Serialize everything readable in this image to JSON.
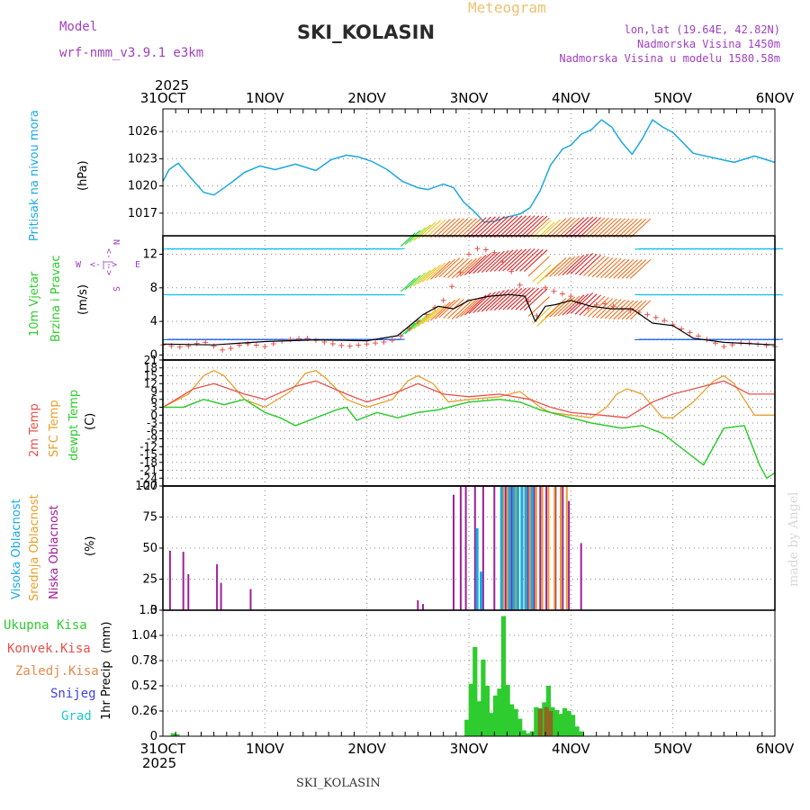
{
  "header": {
    "model_label": "Model",
    "model_name": "wrf-nmm_v3.9.1 e3km",
    "meteogram_label": "Meteogram",
    "station": "SKI_KOLASIN",
    "coords": "lon,lat (19.64E, 42.82N)",
    "elevation": "Nadmorska Visina 1450m",
    "model_elevation": "Nadmorska Visina u modelu 1580.58m",
    "year": "2025",
    "footer_station": "SKI_KOLASIN",
    "credit": "made by Angel"
  },
  "colors": {
    "pressure": "#1ca9e0",
    "temp2m": "#e8504a",
    "sfc": "#e8a02c",
    "dew": "#2ecc2e",
    "purple": "#a040c0",
    "cyan": "#1ca9e0",
    "cloud_low": "#a0209a",
    "cloud_mid": "#e8a02c",
    "cloud_high": "#1ca9e0"
  },
  "time_axis": {
    "labels": [
      "31OCT",
      "1NOV",
      "2NOV",
      "3NOV",
      "4NOV",
      "5NOV",
      "6NOV"
    ],
    "days": [
      0,
      1,
      2,
      3,
      4,
      5,
      6
    ]
  },
  "compass": {
    "n": "N",
    "s": "S",
    "w": "W",
    "e": "E",
    "arrows": "<-|->"
  },
  "chart_data": [
    {
      "type": "line",
      "name": "pressure",
      "ylabel_main": "Pritisak na nivou mora",
      "ylabel_unit": "(hPa)",
      "yticks": [
        1017,
        1020,
        1023,
        1026
      ],
      "ylim": [
        1014.5,
        1028.5
      ],
      "x": [
        0,
        0.06,
        0.15,
        0.25,
        0.4,
        0.5,
        0.65,
        0.8,
        0.95,
        1.1,
        1.3,
        1.5,
        1.65,
        1.8,
        1.92,
        2.05,
        2.2,
        2.35,
        2.5,
        2.6,
        2.75,
        2.85,
        2.95,
        3.05,
        3.15,
        3.25,
        3.35,
        3.5,
        3.6,
        3.7,
        3.8,
        3.92,
        4.0,
        4.1,
        4.2,
        4.3,
        4.4,
        4.5,
        4.6,
        4.7,
        4.8,
        4.9,
        5.0,
        5.2,
        5.4,
        5.6,
        5.8,
        6.0
      ],
      "y": [
        1020.5,
        1021.8,
        1022.5,
        1021.2,
        1019.3,
        1019.0,
        1020.2,
        1021.5,
        1022.2,
        1021.8,
        1022.4,
        1021.7,
        1022.9,
        1023.4,
        1023.2,
        1022.7,
        1021.8,
        1020.5,
        1019.8,
        1019.6,
        1020.2,
        1019.8,
        1018.2,
        1017.2,
        1016.0,
        1016.1,
        1016.5,
        1016.9,
        1017.6,
        1019.5,
        1022.3,
        1024.1,
        1024.5,
        1025.7,
        1026.2,
        1027.3,
        1026.5,
        1024.8,
        1023.5,
        1025.2,
        1027.3,
        1026.5,
        1025.9,
        1023.6,
        1023.1,
        1022.6,
        1023.3,
        1022.6
      ]
    },
    {
      "type": "line",
      "name": "wind",
      "ylabel_main": "10m Vjetar",
      "ylabel_sub": "Brzina i Pravac",
      "ylabel_unit": "(m/s)",
      "yticks": [
        0,
        4,
        8,
        12
      ],
      "ylim": [
        -0.6,
        14.2
      ],
      "series": [
        {
          "name": "speed_plus",
          "x": [
            0,
            0.2,
            0.4,
            0.6,
            0.8,
            1.0,
            1.2,
            1.4,
            1.6,
            1.8,
            2.0,
            2.2,
            2.3,
            2.45,
            2.55,
            2.65,
            2.75,
            2.85,
            2.95,
            3.0,
            3.1,
            3.25,
            3.45,
            3.6,
            3.7,
            3.75,
            3.85,
            4.0,
            4.15,
            4.3,
            4.5,
            4.7,
            4.9,
            5.1,
            5.3,
            5.5,
            5.7,
            6.0
          ],
          "y": [
            1.2,
            0.9,
            1.6,
            0.5,
            1.4,
            1.0,
            1.8,
            2.0,
            1.5,
            1.0,
            1.3,
            1.6,
            1.9,
            3.5,
            4.5,
            5.5,
            6.5,
            8.5,
            10.5,
            12.0,
            12.8,
            12.2,
            9.5,
            6.0,
            4.0,
            8.0,
            7.5,
            7.0,
            5.5,
            6.2,
            5.5,
            5.0,
            4.2,
            3.0,
            2.0,
            1.0,
            1.5,
            1.0
          ]
        },
        {
          "name": "speed_mean",
          "x": [
            0,
            0.5,
            1.0,
            1.5,
            2.0,
            2.3,
            2.45,
            2.55,
            2.7,
            2.85,
            3.0,
            3.2,
            3.4,
            3.55,
            3.65,
            3.75,
            3.85,
            4.0,
            4.2,
            4.4,
            4.6,
            4.8,
            5.0,
            5.2,
            5.5,
            6.0
          ],
          "y": [
            1.3,
            1.2,
            1.6,
            1.8,
            1.7,
            2.3,
            3.8,
            4.8,
            5.8,
            5.5,
            6.5,
            7.0,
            7.2,
            7.0,
            4.0,
            5.8,
            6.0,
            6.5,
            5.8,
            5.5,
            5.5,
            3.8,
            3.5,
            2.0,
            1.5,
            1.2
          ]
        }
      ]
    },
    {
      "type": "line",
      "name": "temperature",
      "ylabel_main": "2m Temp",
      "ylabel_sub": "SFC Temp",
      "ylabel_sub2": "dewpt Temp",
      "ylabel_unit": "(C)",
      "yticks": [
        -27,
        -24,
        -21,
        -18,
        -15,
        -12,
        -9,
        -6,
        -3,
        0,
        3,
        6,
        9,
        12,
        15,
        18,
        21
      ],
      "ylim": [
        -27,
        21
      ],
      "series": [
        {
          "name": "2m",
          "x": [
            0,
            0.3,
            0.5,
            0.8,
            1.0,
            1.3,
            1.5,
            1.8,
            2.0,
            2.25,
            2.5,
            2.75,
            3.0,
            3.3,
            3.6,
            3.8,
            4.0,
            4.3,
            4.55,
            4.8,
            5.0,
            5.3,
            5.5,
            5.75,
            6.0
          ],
          "y": [
            3,
            10,
            12,
            8,
            6,
            11,
            13,
            8,
            5,
            8,
            12,
            8,
            7,
            8,
            6,
            3,
            1,
            0,
            -1,
            5,
            8,
            11,
            13,
            8,
            8
          ]
        },
        {
          "name": "sfc",
          "x": [
            0,
            0.25,
            0.4,
            0.5,
            0.6,
            0.8,
            1.0,
            1.25,
            1.4,
            1.5,
            1.6,
            1.8,
            2.0,
            2.25,
            2.4,
            2.5,
            2.65,
            2.8,
            3.0,
            3.3,
            3.5,
            3.7,
            3.8,
            4.0,
            4.2,
            4.35,
            4.45,
            4.55,
            4.7,
            4.9,
            5.0,
            5.2,
            5.4,
            5.5,
            5.6,
            5.8,
            6.0
          ],
          "y": [
            3,
            8,
            15,
            17,
            15,
            6,
            3,
            9,
            16,
            17,
            14,
            6,
            3,
            6,
            13,
            15,
            12,
            5,
            6,
            7,
            9,
            3,
            1,
            0,
            -1,
            3,
            8,
            10,
            8,
            -1,
            -1,
            5,
            13,
            15,
            12,
            0,
            0
          ]
        },
        {
          "name": "dew",
          "x": [
            0,
            0.2,
            0.4,
            0.6,
            0.8,
            1.0,
            1.15,
            1.3,
            1.5,
            1.7,
            1.8,
            1.9,
            2.1,
            2.3,
            2.5,
            2.7,
            3.0,
            3.3,
            3.5,
            3.7,
            3.9,
            4.2,
            4.5,
            4.7,
            4.9,
            5.1,
            5.3,
            5.5,
            5.7,
            5.85,
            5.92,
            6.0
          ],
          "y": [
            3,
            3,
            6,
            4,
            6,
            1,
            -1,
            -4,
            -1,
            2,
            3,
            -2,
            1,
            -1,
            1,
            2,
            5,
            6,
            5,
            2,
            0,
            -3,
            -5,
            -4,
            -7,
            -13,
            -19,
            -5,
            -4,
            -19,
            -24,
            -22
          ]
        }
      ]
    },
    {
      "type": "bar",
      "name": "clouds",
      "ylabel_main": "Visoka Oblacnost",
      "ylabel_sub": "Srednja Oblacnost",
      "ylabel_sub2": "Niska Oblacnost",
      "ylabel_unit": "(%)",
      "yticks": [
        0,
        25,
        50,
        75,
        100
      ],
      "ylim": [
        0,
        100
      ],
      "series": [
        {
          "name": "low",
          "x": [
            0.07,
            0.2,
            0.25,
            0.53,
            0.57,
            0.86,
            2.5,
            2.55,
            2.85,
            2.92,
            2.97,
            3.06,
            3.14,
            3.25,
            3.36,
            3.42,
            3.58,
            3.64,
            3.7,
            3.76,
            3.85,
            3.92,
            3.98,
            4.1
          ],
          "y": [
            48,
            47,
            29,
            37,
            22,
            17,
            8,
            5,
            93,
            100,
            100,
            100,
            100,
            100,
            100,
            100,
            100,
            100,
            100,
            100,
            100,
            100,
            88,
            54
          ]
        },
        {
          "name": "mid",
          "x": [
            3.34,
            3.38,
            3.46,
            3.55,
            3.6,
            3.66,
            3.72,
            3.78,
            3.84,
            3.9,
            3.96
          ],
          "y": [
            100,
            100,
            100,
            100,
            100,
            100,
            100,
            100,
            100,
            100,
            100
          ]
        },
        {
          "name": "high",
          "x": [
            3.08,
            3.12,
            3.32,
            3.4,
            3.44,
            3.48,
            3.52,
            3.56,
            3.62
          ],
          "y": [
            66,
            31,
            100,
            100,
            100,
            100,
            100,
            100,
            100
          ]
        }
      ]
    },
    {
      "type": "bar",
      "name": "precipitation",
      "ylabel_main": "1hr Precip",
      "ylabel_unit": "(mm)",
      "yticks": [
        0,
        0.26,
        0.52,
        0.78,
        1.04,
        1.3
      ],
      "ytick_labels": [
        "0",
        "0.26",
        "0.52",
        "0.78",
        "1.04",
        "1.3"
      ],
      "ylim": [
        0,
        1.3
      ],
      "legend": [
        "Ukupna Kisa",
        "Konvek.Kisa",
        "Zaledj.Kisa",
        "Snijeg",
        "Grad"
      ],
      "series": [
        {
          "name": "total",
          "x": [
            0.1,
            0.14,
            2.98,
            3.02,
            3.06,
            3.1,
            3.14,
            3.18,
            3.22,
            3.26,
            3.3,
            3.34,
            3.38,
            3.42,
            3.46,
            3.5,
            3.54,
            3.58,
            3.62,
            3.66,
            3.7,
            3.74,
            3.78,
            3.82,
            3.86,
            3.9,
            3.94,
            3.98,
            4.02,
            4.06,
            4.1
          ],
          "y": [
            0.03,
            0.02,
            0.17,
            0.54,
            0.92,
            0.36,
            0.79,
            0.52,
            0.24,
            0.42,
            0.49,
            1.24,
            0.53,
            0.33,
            0.28,
            0.18,
            0.06,
            0.03,
            0.05,
            0.3,
            0.29,
            0.35,
            0.52,
            0.3,
            0.27,
            0.23,
            0.29,
            0.26,
            0.22,
            0.1,
            0.05
          ]
        },
        {
          "name": "convective",
          "x": [
            3.7,
            3.76,
            3.8
          ],
          "y": [
            0.28,
            0.3,
            0.26
          ]
        }
      ]
    }
  ]
}
